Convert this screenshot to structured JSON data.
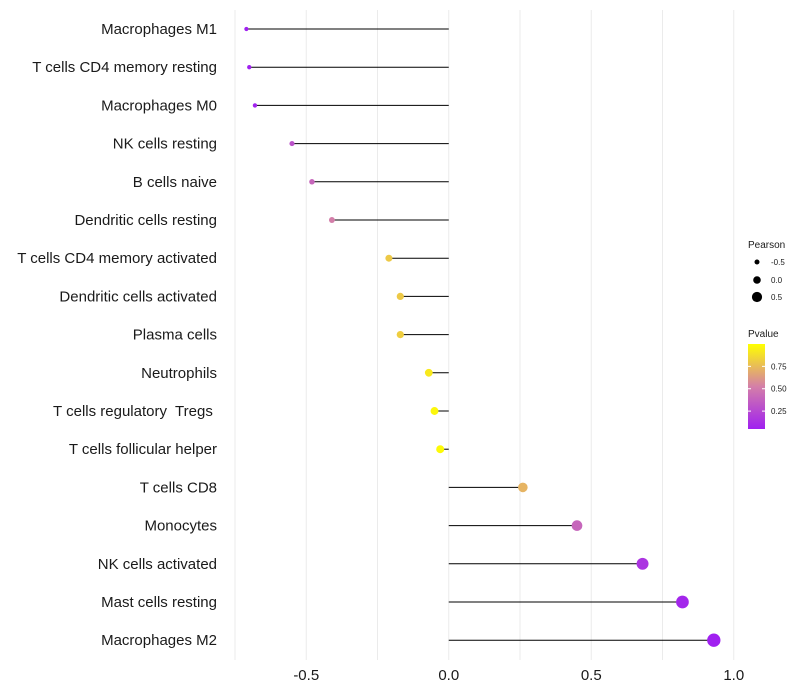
{
  "chart_data": {
    "type": "lollipop",
    "categories": [
      "Macrophages M1",
      "T cells CD4 memory resting",
      "Macrophages M0",
      "NK cells resting",
      "B cells naive",
      "Dendritic cells resting",
      "T cells CD4 memory activated",
      "Dendritic cells activated",
      "Plasma cells",
      "Neutrophils",
      "T cells regulatory  Tregs ",
      "T cells follicular helper",
      "T cells CD8",
      "Monocytes",
      "NK cells activated",
      "Mast cells resting",
      "Macrophages M2"
    ],
    "pearson": [
      -0.71,
      -0.7,
      -0.68,
      -0.55,
      -0.48,
      -0.41,
      -0.21,
      -0.17,
      -0.17,
      -0.07,
      -0.05,
      -0.03,
      0.26,
      0.45,
      0.68,
      0.82,
      0.93
    ],
    "pvalue": [
      0.05,
      0.05,
      0.06,
      0.3,
      0.4,
      0.52,
      0.8,
      0.8,
      0.82,
      0.92,
      0.97,
      0.98,
      0.72,
      0.4,
      0.15,
      0.08,
      0.05
    ],
    "xlim": [
      -0.75,
      1.05
    ],
    "xticks": [
      "-0.5",
      "0.0",
      "0.5",
      "1.0"
    ],
    "xtick_values": [
      -0.5,
      0.0,
      0.5,
      1.0
    ],
    "legend": {
      "size_title": "Pearson",
      "size_labels": [
        "-0.5",
        "0.0",
        "0.5"
      ],
      "size_values": [
        -0.5,
        0.0,
        0.5
      ],
      "color_title": "Pvalue",
      "color_labels": [
        "0.75",
        "0.50",
        "0.25"
      ],
      "color_values": [
        0.75,
        0.5,
        0.25
      ],
      "color_range": [
        0.05,
        1.0
      ],
      "color_low": "#a020f0",
      "color_mid": "#d47fa8",
      "color_high": "#ffff00"
    },
    "grid": true,
    "title": "",
    "xlabel": "",
    "ylabel": ""
  }
}
